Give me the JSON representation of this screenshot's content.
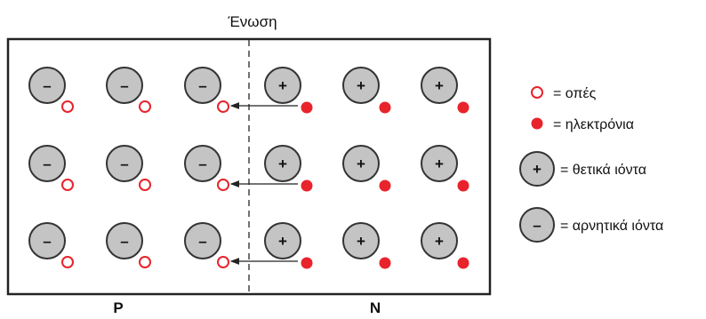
{
  "diagram": {
    "junction_label": "Ένωση",
    "p_label": "P",
    "n_label": "N",
    "colors": {
      "ion_fill": "#c4c4c4",
      "ion_stroke": "#333333",
      "carrier": "#e8232b",
      "border": "#222222"
    },
    "rows": [
      {
        "p_ions": [
          "–",
          "–",
          "–"
        ],
        "n_ions": [
          "+",
          "+",
          "+"
        ]
      },
      {
        "p_ions": [
          "–",
          "–",
          "–"
        ],
        "n_ions": [
          "+",
          "+",
          "+"
        ]
      },
      {
        "p_ions": [
          "–",
          "–",
          "–"
        ],
        "n_ions": [
          "+",
          "+",
          "+"
        ]
      }
    ]
  },
  "legend": {
    "holes": "= οπές",
    "electrons": "= ηλεκτρόνια",
    "positive_ion_sign": "+",
    "positive_ions": "= θετικά ιόντα",
    "negative_ion_sign": "–",
    "negative_ions": "= αρνητικά ιόντα"
  }
}
